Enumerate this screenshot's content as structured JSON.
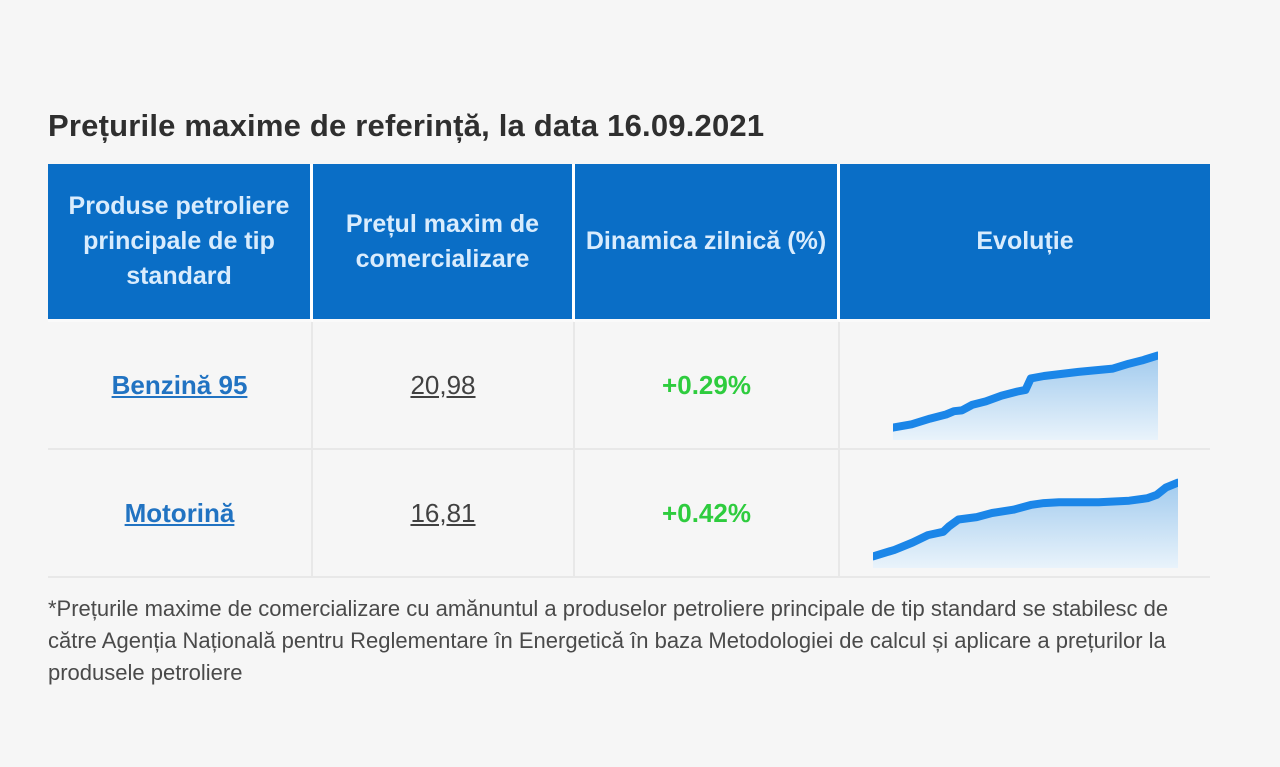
{
  "page": {
    "title": "Prețurile maxime de referință, la data 16.09.2021",
    "footnote": "*Prețurile maxime de comercializare cu amănuntul a produselor petroliere principale de tip standard se stabilesc de către Agenția Națională pentru Reglementare în Energetică în baza Metodologiei de calcul și aplicare a prețurilor la produsele petroliere"
  },
  "table": {
    "headers": [
      {
        "label": "Produse petroliere principale de tip standard"
      },
      {
        "label": "Prețul maxim de comercializare"
      },
      {
        "label": "Dinamica zilnică (%)"
      },
      {
        "label": "Evoluție"
      }
    ],
    "rows": [
      {
        "product": "Benzină 95",
        "price": "20,98",
        "dynamic": "+0.29%"
      },
      {
        "product": "Motorină",
        "price": "16,81",
        "dynamic": "+0.42%"
      }
    ]
  },
  "colors": {
    "header_bg": "#0a6ec6",
    "header_text": "#d9ecfd",
    "link_blue": "#2173c2",
    "price_text": "#414141",
    "positive_green": "#2ecc3e",
    "spark_line": "#1b86e8",
    "spark_fill_top": "#a2cbee",
    "spark_fill_bottom": "#e9f3fb",
    "page_bg": "#f6f6f6",
    "title_text": "#2f2f2f"
  },
  "chart_data": [
    {
      "type": "area",
      "name": "benzina-95-evolutie-sparkline",
      "series_label": "Benzină 95",
      "title": "Evoluție",
      "x_range": [
        0,
        100
      ],
      "y_range": [
        0,
        100
      ],
      "points": [
        [
          0,
          9
        ],
        [
          7,
          13
        ],
        [
          14,
          20
        ],
        [
          20,
          25
        ],
        [
          23,
          29
        ],
        [
          26,
          30
        ],
        [
          30,
          37
        ],
        [
          35,
          41
        ],
        [
          41,
          48
        ],
        [
          47,
          53
        ],
        [
          50,
          55
        ],
        [
          52,
          69
        ],
        [
          57,
          72
        ],
        [
          70,
          77
        ],
        [
          83,
          81
        ],
        [
          89,
          87
        ],
        [
          94,
          91
        ],
        [
          100,
          97
        ]
      ],
      "trend": "+0.29%"
    },
    {
      "type": "area",
      "name": "motorina-evolutie-sparkline",
      "series_label": "Motorină",
      "title": "Evoluție",
      "x_range": [
        0,
        100
      ],
      "y_range": [
        0,
        100
      ],
      "points": [
        [
          0,
          8
        ],
        [
          7,
          16
        ],
        [
          13,
          25
        ],
        [
          18,
          34
        ],
        [
          23,
          38
        ],
        [
          25,
          45
        ],
        [
          28,
          53
        ],
        [
          34,
          56
        ],
        [
          39,
          61
        ],
        [
          46,
          65
        ],
        [
          52,
          71
        ],
        [
          56,
          73
        ],
        [
          61,
          74
        ],
        [
          74,
          74
        ],
        [
          84,
          76
        ],
        [
          90,
          79
        ],
        [
          93,
          83
        ],
        [
          96,
          92
        ],
        [
          100,
          98
        ]
      ],
      "trend": "+0.42%"
    }
  ]
}
